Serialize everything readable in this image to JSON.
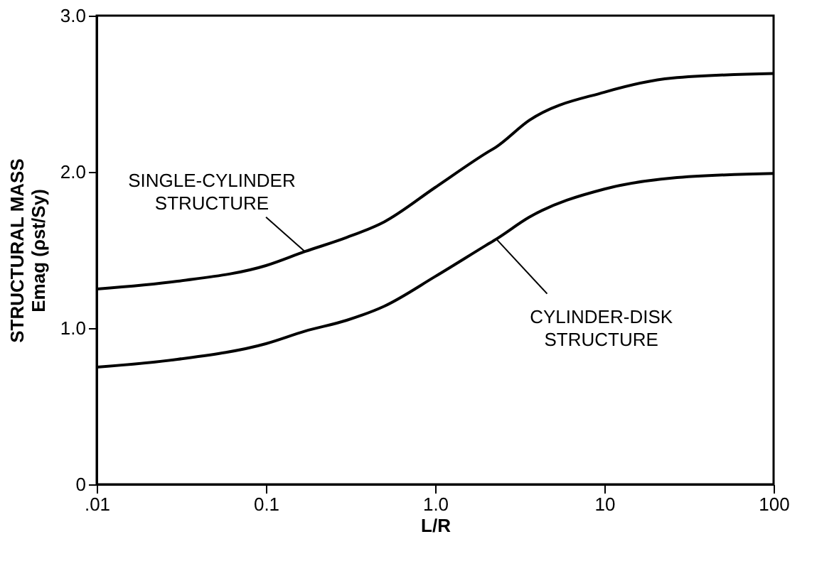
{
  "chart_data": {
    "type": "line",
    "xlabel": "L/R",
    "ylabel": "STRUCTURAL MASS\nEmag (ρst/Sy)",
    "x": [
      0.01,
      0.03,
      0.1,
      0.17,
      0.3,
      0.5,
      1,
      2,
      2.3,
      3.6,
      10,
      25,
      100
    ],
    "series": [
      {
        "color": "#000000",
        "values": [
          1.25,
          1.3,
          1.4,
          1.49,
          1.58,
          1.68,
          1.9,
          2.12,
          2.16,
          2.33,
          2.51,
          2.6,
          2.63
        ]
      },
      {
        "color": "#000000",
        "values": [
          0.75,
          0.8,
          0.9,
          0.98,
          1.05,
          1.14,
          1.33,
          1.53,
          1.57,
          1.71,
          1.89,
          1.96,
          1.99
        ]
      }
    ],
    "log": "x",
    "xlim": [
      0.01,
      100
    ],
    "xticks": [
      {
        "value": 0.01,
        "label": ".01"
      },
      {
        "value": 0.1,
        "label": "0.1"
      },
      {
        "value": 1,
        "label": "1.0"
      },
      10,
      100
    ],
    "ylim": [
      0,
      3
    ],
    "yticks": [
      0,
      {
        "value": 1,
        "label": "1.0"
      },
      {
        "value": 2,
        "label": "2.0"
      },
      {
        "value": 3,
        "label": "3.0"
      }
    ],
    "annotations": [
      {
        "text": "SINGLE-CYLINDER\nSTRUCTURE",
        "x": 0.17,
        "y": 1.49
      },
      {
        "text": "CYLINDER-DISK\nSTRUCTURE",
        "x": 2.3,
        "y": 1.57
      }
    ],
    "grid": false,
    "marker": "none",
    "line_style": "solid"
  }
}
